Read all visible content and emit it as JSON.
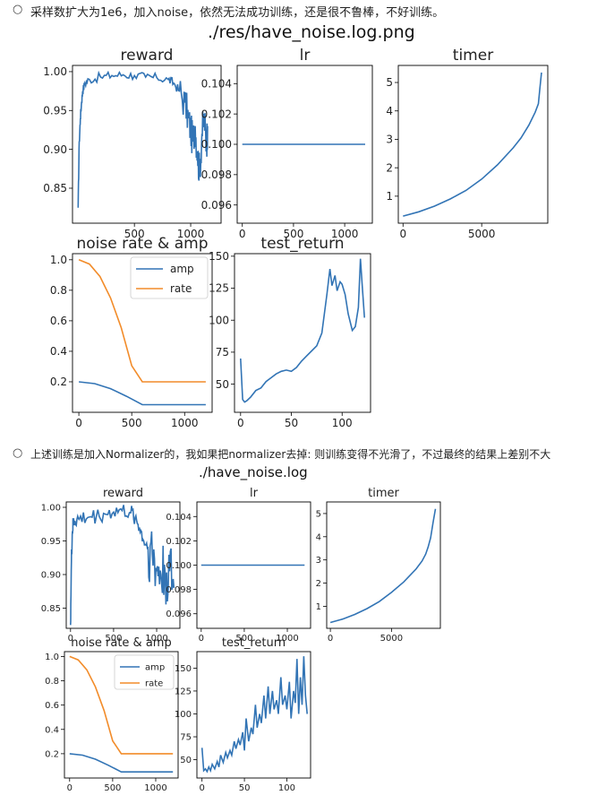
{
  "notes": [
    {
      "text": "采样数扩大为1e6，加入noise，依然无法成功训练，还是很不鲁棒，不好训练。"
    },
    {
      "text": "上述训练是加入Normalizer的，我如果把normalizer去掉: 则训练变得不光滑了，不过最终的结果上差别不大"
    }
  ],
  "figures": [
    {
      "title": "./res/have_noise.log.png"
    },
    {
      "title": "./have_noise.log"
    }
  ],
  "colors": {
    "blue": "#3274b5",
    "orange": "#f28c2a"
  },
  "chart_data": [
    {
      "figure": 0,
      "type": "line",
      "title": "reward",
      "xlim": [
        -50,
        1270
      ],
      "ylim": [
        0.805,
        1.008
      ],
      "xticks": [
        500,
        1000
      ],
      "xtick_labels": [
        "500",
        "1000"
      ],
      "yticks": [
        0.85,
        0.9,
        0.95,
        1.0
      ],
      "ytick_labels": [
        "0.85",
        "0.90",
        "0.95",
        "1.00"
      ],
      "series": [
        {
          "color": "#3274b5",
          "noise": 0.006,
          "x": [
            0,
            10,
            20,
            30,
            40,
            60,
            100,
            200,
            300,
            400,
            500,
            600,
            700,
            800,
            850,
            900,
            950,
            980,
            1000,
            1020,
            1040,
            1060,
            1080,
            1100,
            1120,
            1140,
            1150
          ],
          "y": [
            0.825,
            0.91,
            0.94,
            0.96,
            0.975,
            0.985,
            0.99,
            0.993,
            0.995,
            0.996,
            0.995,
            0.993,
            0.992,
            0.99,
            0.985,
            0.975,
            0.96,
            0.94,
            0.925,
            0.91,
            0.93,
            0.895,
            0.87,
            0.92,
            0.94,
            0.905,
            0.93
          ]
        }
      ]
    },
    {
      "figure": 0,
      "type": "line",
      "title": "lr",
      "xlim": [
        -50,
        1270
      ],
      "ylim": [
        0.0948,
        0.1052
      ],
      "xticks": [
        0,
        500,
        1000
      ],
      "xtick_labels": [
        "0",
        "500",
        "1000"
      ],
      "yticks": [
        0.096,
        0.098,
        0.1,
        0.102,
        0.104
      ],
      "ytick_labels": [
        "0.096",
        "0.098",
        "0.100",
        "0.102",
        "0.104"
      ],
      "series": [
        {
          "color": "#3274b5",
          "x": [
            0,
            1200
          ],
          "y": [
            0.1,
            0.1
          ]
        }
      ]
    },
    {
      "figure": 0,
      "type": "line",
      "title": "timer",
      "xlim": [
        -300,
        9200
      ],
      "ylim": [
        0.05,
        5.6
      ],
      "xticks": [
        0,
        5000
      ],
      "xtick_labels": [
        "0",
        "5000"
      ],
      "yticks": [
        1,
        2,
        3,
        4,
        5
      ],
      "ytick_labels": [
        "1",
        "2",
        "3",
        "4",
        "5"
      ],
      "series": [
        {
          "color": "#3274b5",
          "x": [
            0,
            1000,
            2000,
            3000,
            4000,
            5000,
            6000,
            7000,
            7500,
            8000,
            8400,
            8600,
            8700,
            8800
          ],
          "y": [
            0.3,
            0.45,
            0.65,
            0.9,
            1.2,
            1.6,
            2.1,
            2.7,
            3.05,
            3.5,
            3.95,
            4.25,
            4.8,
            5.35
          ]
        }
      ]
    },
    {
      "figure": 0,
      "type": "line",
      "title": "noise rate & amp",
      "xlim": [
        -60,
        1260
      ],
      "ylim": [
        0.0,
        1.04
      ],
      "xticks": [
        0,
        500,
        1000
      ],
      "xtick_labels": [
        "0",
        "500",
        "1000"
      ],
      "yticks": [
        0.2,
        0.4,
        0.6,
        0.8,
        1.0
      ],
      "ytick_labels": [
        "0.2",
        "0.4",
        "0.6",
        "0.8",
        "1.0"
      ],
      "legend": "top-right",
      "series": [
        {
          "name": "amp",
          "color": "#3274b5",
          "x": [
            0,
            150,
            300,
            450,
            600,
            1200
          ],
          "y": [
            0.2,
            0.188,
            0.155,
            0.105,
            0.05,
            0.05
          ]
        },
        {
          "name": "rate",
          "color": "#f28c2a",
          "x": [
            0,
            100,
            200,
            300,
            400,
            500,
            600,
            1200
          ],
          "y": [
            1.0,
            0.972,
            0.89,
            0.75,
            0.555,
            0.305,
            0.2,
            0.2
          ]
        }
      ]
    },
    {
      "figure": 0,
      "type": "line",
      "title": "test_return",
      "xlim": [
        -6,
        128
      ],
      "ylim": [
        28,
        152
      ],
      "xticks": [
        0,
        50,
        100
      ],
      "xtick_labels": [
        "0",
        "50",
        "100"
      ],
      "yticks": [
        50,
        75,
        100,
        125,
        150
      ],
      "ytick_labels": [
        "50",
        "75",
        "100",
        "125",
        "150"
      ],
      "series": [
        {
          "color": "#3274b5",
          "x": [
            0,
            2,
            4,
            6,
            10,
            15,
            20,
            25,
            30,
            35,
            40,
            45,
            50,
            55,
            60,
            65,
            70,
            75,
            80,
            85,
            88,
            90,
            93,
            95,
            98,
            100,
            103,
            106,
            110,
            113,
            116,
            118,
            120,
            122
          ],
          "y": [
            70,
            38,
            36,
            37,
            40,
            45,
            47,
            52,
            55,
            58,
            60,
            61,
            60,
            63,
            68,
            72,
            76,
            80,
            90,
            120,
            140,
            127,
            135,
            123,
            130,
            128,
            120,
            105,
            92,
            95,
            110,
            148,
            125,
            102
          ]
        }
      ]
    },
    {
      "figure": 1,
      "type": "line",
      "title": "reward",
      "xlim": [
        -50,
        1270
      ],
      "ylim": [
        0.82,
        1.008
      ],
      "xticks": [
        0,
        500,
        1000
      ],
      "xtick_labels": [
        "0",
        "500",
        "1000"
      ],
      "yticks": [
        0.85,
        0.9,
        0.95,
        1.0
      ],
      "ytick_labels": [
        "0.85",
        "0.90",
        "0.95",
        "1.00"
      ],
      "series": [
        {
          "color": "#3274b5",
          "noise": 0.012,
          "x": [
            0,
            10,
            20,
            30,
            50,
            100,
            200,
            300,
            400,
            500,
            600,
            700,
            750,
            800,
            850,
            900,
            950,
            1000,
            1050,
            1100,
            1150,
            1200
          ],
          "y": [
            0.825,
            0.92,
            0.96,
            0.975,
            0.98,
            0.982,
            0.985,
            0.987,
            0.99,
            0.993,
            0.995,
            0.992,
            0.985,
            0.97,
            0.95,
            0.94,
            0.93,
            0.905,
            0.9,
            0.9,
            0.905,
            0.88
          ]
        }
      ]
    },
    {
      "figure": 1,
      "type": "line",
      "title": "lr",
      "xlim": [
        -50,
        1270
      ],
      "ylim": [
        0.0948,
        0.1052
      ],
      "xticks": [
        0,
        500,
        1000
      ],
      "xtick_labels": [
        "0",
        "500",
        "1000"
      ],
      "yticks": [
        0.096,
        0.098,
        0.1,
        0.102,
        0.104
      ],
      "ytick_labels": [
        "0.096",
        "0.098",
        "0.100",
        "0.102",
        "0.104"
      ],
      "series": [
        {
          "color": "#3274b5",
          "x": [
            0,
            1200
          ],
          "y": [
            0.1,
            0.1
          ]
        }
      ]
    },
    {
      "figure": 1,
      "type": "line",
      "title": "timer",
      "xlim": [
        -300,
        9000
      ],
      "ylim": [
        0.05,
        5.5
      ],
      "xticks": [
        0,
        5000
      ],
      "xtick_labels": [
        "0",
        "5000"
      ],
      "yticks": [
        1,
        2,
        3,
        4,
        5
      ],
      "ytick_labels": [
        "1",
        "2",
        "3",
        "4",
        "5"
      ],
      "series": [
        {
          "color": "#3274b5",
          "x": [
            0,
            1000,
            2000,
            3000,
            4000,
            5000,
            6000,
            7000,
            7500,
            7800,
            8000,
            8200,
            8400,
            8600
          ],
          "y": [
            0.3,
            0.45,
            0.65,
            0.9,
            1.2,
            1.6,
            2.05,
            2.6,
            2.95,
            3.25,
            3.55,
            3.95,
            4.6,
            5.2
          ]
        }
      ]
    },
    {
      "figure": 1,
      "type": "line",
      "title": "noise rate & amp",
      "xlim": [
        -60,
        1260
      ],
      "ylim": [
        0.0,
        1.04
      ],
      "xticks": [
        0,
        500,
        1000
      ],
      "xtick_labels": [
        "0",
        "500",
        "1000"
      ],
      "yticks": [
        0.2,
        0.4,
        0.6,
        0.8,
        1.0
      ],
      "ytick_labels": [
        "0.2",
        "0.4",
        "0.6",
        "0.8",
        "1.0"
      ],
      "legend": "top-right",
      "series": [
        {
          "name": "amp",
          "color": "#3274b5",
          "x": [
            0,
            150,
            300,
            450,
            600,
            1200
          ],
          "y": [
            0.2,
            0.188,
            0.155,
            0.105,
            0.05,
            0.05
          ]
        },
        {
          "name": "rate",
          "color": "#f28c2a",
          "x": [
            0,
            100,
            200,
            300,
            400,
            500,
            600,
            1200
          ],
          "y": [
            1.0,
            0.972,
            0.89,
            0.75,
            0.555,
            0.305,
            0.2,
            0.2
          ]
        }
      ]
    },
    {
      "figure": 1,
      "type": "line",
      "title": "test_return",
      "xlim": [
        -6,
        128
      ],
      "ylim": [
        30,
        168
      ],
      "xticks": [
        0,
        50,
        100
      ],
      "xtick_labels": [
        "0",
        "50",
        "100"
      ],
      "yticks": [
        50,
        75,
        100,
        125,
        150
      ],
      "ytick_labels": [
        "50",
        "75",
        "100",
        "125",
        "150"
      ],
      "series": [
        {
          "color": "#3274b5",
          "x": [
            0,
            2,
            4,
            6,
            8,
            10,
            12,
            15,
            18,
            20,
            22,
            25,
            28,
            30,
            33,
            35,
            38,
            40,
            43,
            45,
            48,
            50,
            52,
            55,
            58,
            60,
            63,
            65,
            68,
            70,
            73,
            75,
            78,
            80,
            83,
            85,
            88,
            90,
            93,
            95,
            98,
            100,
            103,
            105,
            108,
            110,
            112,
            114,
            116,
            118,
            120,
            122,
            124
          ],
          "y": [
            63,
            38,
            40,
            37,
            42,
            38,
            45,
            40,
            48,
            42,
            55,
            47,
            58,
            52,
            60,
            55,
            70,
            62,
            72,
            66,
            80,
            60,
            95,
            70,
            85,
            78,
            110,
            85,
            100,
            90,
            120,
            95,
            130,
            100,
            125,
            105,
            115,
            100,
            140,
            110,
            120,
            105,
            135,
            95,
            125,
            112,
            160,
            100,
            140,
            110,
            163,
            120,
            100
          ]
        }
      ]
    }
  ]
}
